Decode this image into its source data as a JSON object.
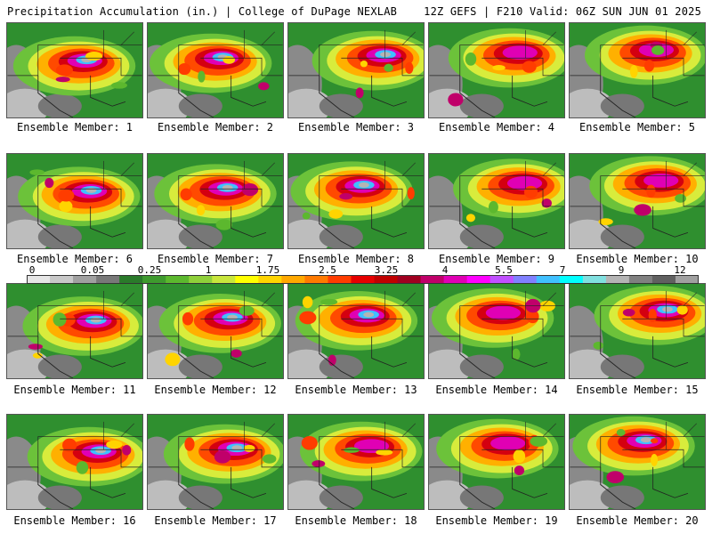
{
  "header": {
    "left": "Precipitation Accumulation (in.) | College of DuPage NEXLAB",
    "right": "12Z GEFS | F210 Valid: 06Z SUN JUN 01 2025"
  },
  "members": [
    "Ensemble Member: 1",
    "Ensemble Member: 2",
    "Ensemble Member: 3",
    "Ensemble Member: 4",
    "Ensemble Member: 5",
    "Ensemble Member: 6",
    "Ensemble Member: 7",
    "Ensemble Member: 8",
    "Ensemble Member: 9",
    "Ensemble Member: 10",
    "Ensemble Member: 11",
    "Ensemble Member: 12",
    "Ensemble Member: 13",
    "Ensemble Member: 14",
    "Ensemble Member: 15",
    "Ensemble Member: 16",
    "Ensemble Member: 17",
    "Ensemble Member: 18",
    "Ensemble Member: 19",
    "Ensemble Member: 20"
  ],
  "colorbar": {
    "tick_labels": [
      "0",
      "0.05",
      "0.25",
      "1",
      "1.75",
      "2.5",
      "3.25",
      "4",
      "5.5",
      "7",
      "9",
      "12"
    ],
    "colors": [
      "#e6e6e6",
      "#c8c8c8",
      "#a0a0a0",
      "#787878",
      "#2a7a2a",
      "#3e9a2e",
      "#5cb82e",
      "#8fd03a",
      "#c8e63c",
      "#ffff00",
      "#ffd400",
      "#ffa800",
      "#ff7a00",
      "#ff3c00",
      "#e60000",
      "#c00000",
      "#a00020",
      "#c0006a",
      "#e000b4",
      "#ff00ff",
      "#c050ff",
      "#8080ff",
      "#40c0ff",
      "#00ffff",
      "#80e0e0",
      "#b4b4b4",
      "#808080",
      "#606060",
      "#a0a0a0"
    ]
  }
}
